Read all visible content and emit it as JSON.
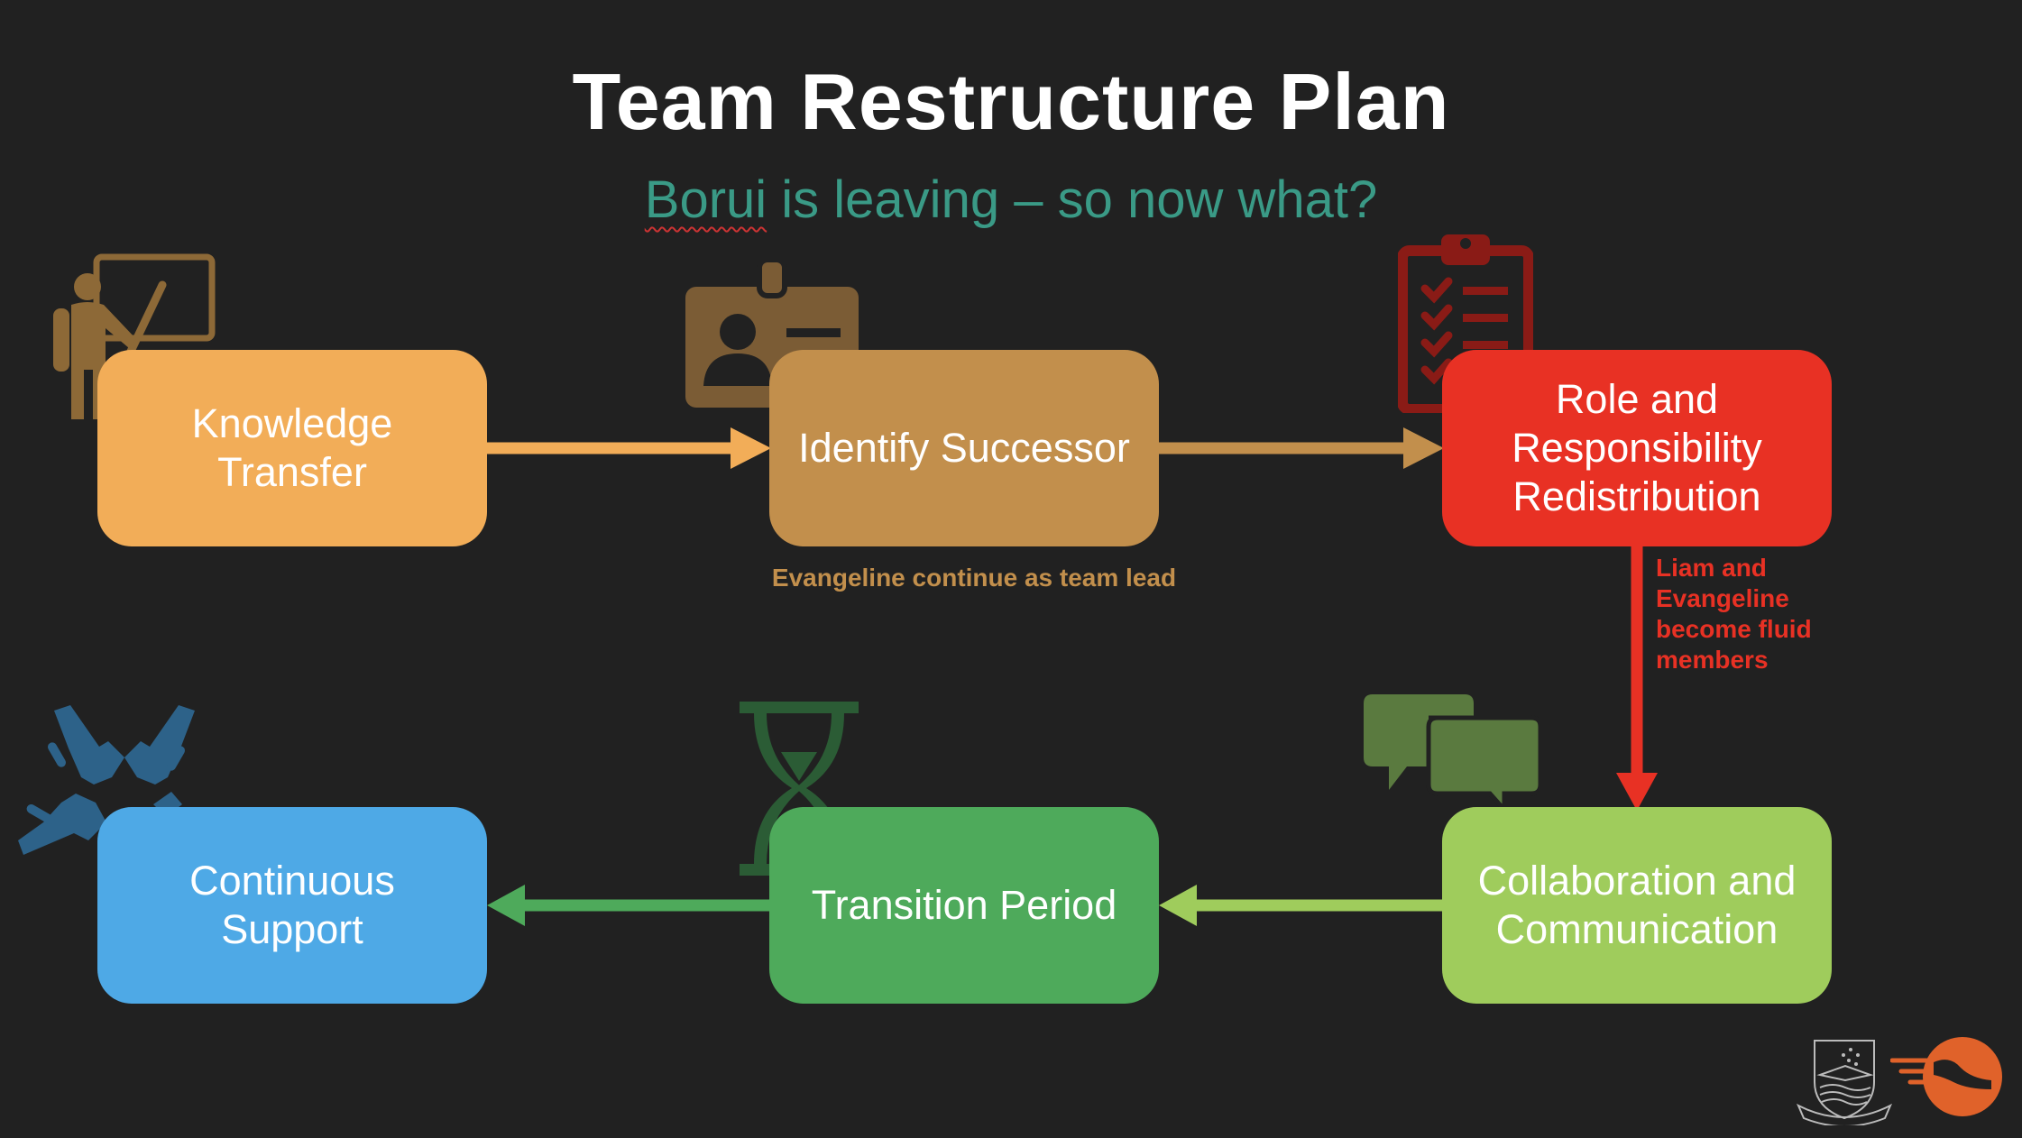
{
  "title": "Team Restructure Plan",
  "subtitle": {
    "highlighted": "Borui",
    "rest": " is leaving – so now what?"
  },
  "steps": [
    {
      "label": "Knowledge Transfer",
      "color": "#f2ad58",
      "icon": "teacher-icon"
    },
    {
      "label": "Identify Successor",
      "color": "#c28f4c",
      "icon": "id-badge-icon"
    },
    {
      "label": "Role and Responsibility Redistribution",
      "color": "#e83124",
      "icon": "clipboard-checklist-icon"
    },
    {
      "label": "Collaboration and Communication",
      "color": "#9fcc5c",
      "icon": "chat-bubbles-icon"
    },
    {
      "label": "Transition Period",
      "color": "#4eaa5b",
      "icon": "hourglass-icon"
    },
    {
      "label": "Continuous Support",
      "color": "#4ea9e6",
      "icon": "helping-hands-icon"
    }
  ],
  "notes": {
    "successor": "Evangeline continue as team lead",
    "redistribution": "Liam and Evangeline become fluid members"
  },
  "colors": {
    "background": "#212121",
    "subtitle": "#3a9a86",
    "note_successor": "#c28f4c",
    "note_redistribution": "#e83124"
  },
  "logos": [
    "university-crest-logo",
    "orange-brand-logo"
  ]
}
